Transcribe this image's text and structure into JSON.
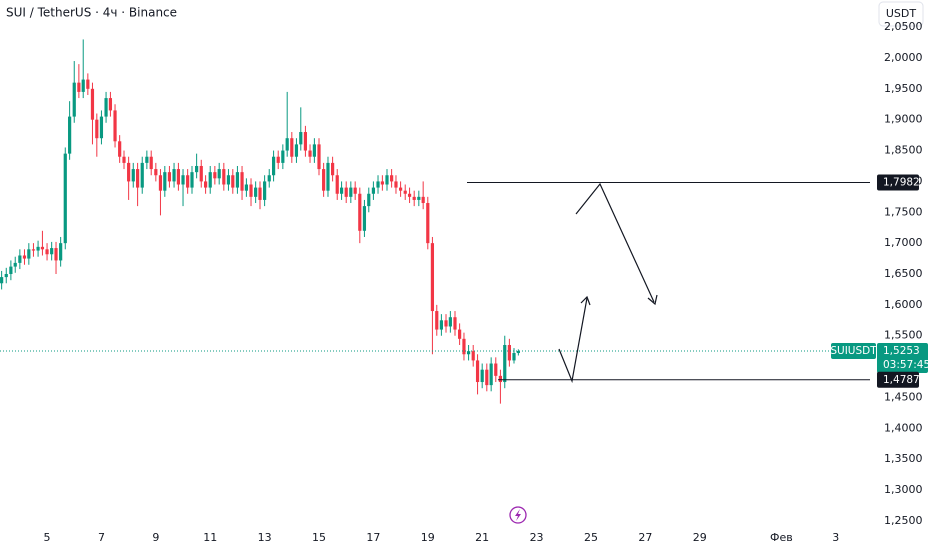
{
  "chart_data": {
    "type": "candlestick",
    "title": "SUI / TetherUS · 4ч · Binance",
    "currency": "USDT",
    "symbol": "SUIUSDT",
    "countdown": "03:57:45",
    "up_color": "#089981",
    "down_color": "#f23645",
    "x": [
      3.33,
      3.5,
      3.67,
      3.83,
      4,
      4.17,
      4.33,
      4.5,
      4.67,
      4.83,
      5,
      5.17,
      5.33,
      5.5,
      5.67,
      5.83,
      6,
      6.17,
      6.33,
      6.5,
      6.67,
      6.83,
      7,
      7.17,
      7.33,
      7.5,
      7.67,
      7.83,
      8,
      8.17,
      8.33,
      8.5,
      8.67,
      8.83,
      9,
      9.17,
      9.33,
      9.5,
      9.67,
      9.83,
      10,
      10.17,
      10.33,
      10.5,
      10.67,
      10.83,
      11,
      11.17,
      11.33,
      11.5,
      11.67,
      11.83,
      12,
      12.17,
      12.33,
      12.5,
      12.67,
      12.83,
      13,
      13.17,
      13.33,
      13.5,
      13.67,
      13.83,
      14,
      14.17,
      14.33,
      14.5,
      14.67,
      14.83,
      15,
      15.17,
      15.33,
      15.5,
      15.67,
      15.83,
      16,
      16.17,
      16.33,
      16.5,
      16.67,
      16.83,
      17,
      17.17,
      17.33,
      17.5,
      17.67,
      17.83,
      18,
      18.17,
      18.33,
      18.5,
      18.67,
      18.83,
      19,
      19.17,
      19.33,
      19.5,
      19.67,
      19.83,
      20,
      20.17,
      20.33,
      20.5,
      20.67,
      20.83,
      21,
      21.17,
      21.33,
      21.5,
      21.67,
      21.83,
      22,
      22.17,
      22.33
    ],
    "open": [
      1.635,
      1.645,
      1.65,
      1.662,
      1.668,
      1.68,
      1.675,
      1.69,
      1.688,
      1.694,
      1.69,
      1.682,
      1.692,
      1.672,
      1.7,
      1.845,
      1.905,
      1.96,
      1.945,
      1.965,
      1.95,
      1.9,
      1.87,
      1.905,
      1.935,
      1.915,
      1.865,
      1.84,
      1.83,
      1.8,
      1.82,
      1.79,
      1.83,
      1.84,
      1.82,
      1.81,
      1.785,
      1.815,
      1.8,
      1.82,
      1.795,
      1.81,
      1.79,
      1.815,
      1.825,
      1.8,
      1.79,
      1.815,
      1.805,
      1.82,
      1.795,
      1.81,
      1.79,
      1.815,
      1.785,
      1.795,
      1.775,
      1.79,
      1.77,
      1.8,
      1.81,
      1.84,
      1.83,
      1.85,
      1.87,
      1.84,
      1.86,
      1.88,
      1.85,
      1.84,
      1.86,
      1.82,
      1.785,
      1.83,
      1.81,
      1.78,
      1.79,
      1.775,
      1.79,
      1.78,
      1.72,
      1.76,
      1.78,
      1.79,
      1.8,
      1.795,
      1.81,
      1.8,
      1.79,
      1.785,
      1.78,
      1.775,
      1.77,
      1.775,
      1.765,
      1.7,
      1.59,
      1.56,
      1.575,
      1.565,
      1.58,
      1.56,
      1.545,
      1.52,
      1.525,
      1.51,
      1.475,
      1.495,
      1.47,
      1.505,
      1.485,
      1.475,
      1.535,
      1.51,
      1.522
    ],
    "high": [
      1.655,
      1.66,
      1.672,
      1.678,
      1.69,
      1.69,
      1.7,
      1.7,
      1.704,
      1.72,
      1.7,
      1.702,
      1.702,
      1.71,
      1.855,
      1.93,
      1.995,
      1.99,
      2.03,
      1.975,
      1.96,
      1.91,
      1.915,
      1.945,
      1.945,
      1.925,
      1.875,
      1.85,
      1.84,
      1.83,
      1.83,
      1.84,
      1.85,
      1.85,
      1.83,
      1.82,
      1.825,
      1.825,
      1.83,
      1.83,
      1.82,
      1.82,
      1.825,
      1.845,
      1.835,
      1.81,
      1.825,
      1.825,
      1.83,
      1.83,
      1.82,
      1.82,
      1.825,
      1.825,
      1.805,
      1.805,
      1.8,
      1.8,
      1.81,
      1.82,
      1.85,
      1.85,
      1.86,
      1.945,
      1.88,
      1.87,
      1.92,
      1.89,
      1.86,
      1.87,
      1.87,
      1.83,
      1.84,
      1.84,
      1.82,
      1.8,
      1.8,
      1.8,
      1.8,
      1.79,
      1.77,
      1.79,
      1.8,
      1.81,
      1.81,
      1.82,
      1.82,
      1.81,
      1.8,
      1.795,
      1.79,
      1.785,
      1.785,
      1.8,
      1.775,
      1.71,
      1.6,
      1.585,
      1.585,
      1.59,
      1.59,
      1.57,
      1.555,
      1.535,
      1.535,
      1.52,
      1.505,
      1.505,
      1.515,
      1.515,
      1.495,
      1.55,
      1.545,
      1.53,
      1.528
    ],
    "low": [
      1.625,
      1.635,
      1.64,
      1.652,
      1.658,
      1.665,
      1.665,
      1.678,
      1.678,
      1.68,
      1.672,
      1.672,
      1.65,
      1.662,
      1.69,
      1.835,
      1.895,
      1.935,
      1.935,
      1.94,
      1.86,
      1.84,
      1.86,
      1.895,
      1.905,
      1.855,
      1.83,
      1.82,
      1.77,
      1.79,
      1.76,
      1.78,
      1.82,
      1.81,
      1.8,
      1.745,
      1.775,
      1.79,
      1.79,
      1.785,
      1.76,
      1.78,
      1.78,
      1.805,
      1.79,
      1.78,
      1.78,
      1.795,
      1.795,
      1.785,
      1.785,
      1.78,
      1.78,
      1.77,
      1.775,
      1.76,
      1.765,
      1.755,
      1.76,
      1.79,
      1.8,
      1.82,
      1.82,
      1.84,
      1.83,
      1.83,
      1.85,
      1.84,
      1.83,
      1.83,
      1.81,
      1.775,
      1.775,
      1.8,
      1.77,
      1.77,
      1.765,
      1.765,
      1.77,
      1.7,
      1.71,
      1.75,
      1.77,
      1.78,
      1.785,
      1.785,
      1.79,
      1.78,
      1.775,
      1.77,
      1.765,
      1.76,
      1.76,
      1.755,
      1.69,
      1.52,
      1.55,
      1.55,
      1.555,
      1.555,
      1.55,
      1.535,
      1.51,
      1.51,
      1.5,
      1.455,
      1.465,
      1.46,
      1.46,
      1.475,
      1.44,
      1.465,
      1.5,
      1.505,
      1.518
    ],
    "close": [
      1.645,
      1.65,
      1.662,
      1.668,
      1.68,
      1.675,
      1.69,
      1.688,
      1.694,
      1.69,
      1.682,
      1.692,
      1.672,
      1.7,
      1.845,
      1.905,
      1.96,
      1.945,
      1.965,
      1.95,
      1.9,
      1.87,
      1.905,
      1.935,
      1.915,
      1.865,
      1.84,
      1.83,
      1.8,
      1.82,
      1.79,
      1.83,
      1.84,
      1.82,
      1.81,
      1.785,
      1.815,
      1.8,
      1.82,
      1.795,
      1.81,
      1.79,
      1.815,
      1.825,
      1.8,
      1.79,
      1.815,
      1.805,
      1.82,
      1.795,
      1.81,
      1.79,
      1.815,
      1.785,
      1.795,
      1.775,
      1.79,
      1.77,
      1.8,
      1.81,
      1.84,
      1.83,
      1.85,
      1.87,
      1.84,
      1.86,
      1.88,
      1.85,
      1.84,
      1.86,
      1.82,
      1.785,
      1.83,
      1.81,
      1.78,
      1.79,
      1.775,
      1.79,
      1.78,
      1.72,
      1.76,
      1.78,
      1.79,
      1.8,
      1.795,
      1.81,
      1.8,
      1.79,
      1.785,
      1.78,
      1.775,
      1.77,
      1.775,
      1.765,
      1.7,
      1.59,
      1.56,
      1.575,
      1.565,
      1.58,
      1.56,
      1.545,
      1.52,
      1.525,
      1.51,
      1.475,
      1.495,
      1.47,
      1.505,
      1.485,
      1.475,
      1.535,
      1.51,
      1.522,
      1.5253
    ],
    "xlim": [
      3.27,
      35.26
    ],
    "xticks": [
      5,
      7,
      9,
      11,
      13,
      15,
      17,
      19,
      21,
      23,
      25,
      27,
      29,
      {
        "value": 32,
        "label": "Фев"
      },
      {
        "value": 34,
        "label": "3"
      }
    ],
    "ylim": [
      1.24,
      2.09
    ],
    "yticks": [
      {
        "value": 1.25,
        "label": "1,2500"
      },
      {
        "value": 1.3,
        "label": "1,3000"
      },
      {
        "value": 1.35,
        "label": "1,3500"
      },
      {
        "value": 1.4,
        "label": "1,4000"
      },
      {
        "value": 1.45,
        "label": "1,4500"
      },
      {
        "value": 1.5,
        "label": "1,5000"
      },
      {
        "value": 1.55,
        "label": "1,5500"
      },
      {
        "value": 1.6,
        "label": "1,6000"
      },
      {
        "value": 1.65,
        "label": "1,6500"
      },
      {
        "value": 1.7,
        "label": "1,7000"
      },
      {
        "value": 1.75,
        "label": "1,7500"
      },
      {
        "value": 1.8,
        "label": "1,8000"
      },
      {
        "value": 1.85,
        "label": "1,8500"
      },
      {
        "value": 1.9,
        "label": "1,9000"
      },
      {
        "value": 1.95,
        "label": "1,9500"
      },
      {
        "value": 2.0,
        "label": "2,0000"
      },
      {
        "value": 2.05,
        "label": "2,0500"
      }
    ],
    "price_lines": [
      {
        "value": 1.7982,
        "label": "1,7982"
      },
      {
        "value": 1.4787,
        "label": "1,4787"
      }
    ],
    "last_price": {
      "value": 1.5253,
      "label": "1,5253"
    }
  }
}
